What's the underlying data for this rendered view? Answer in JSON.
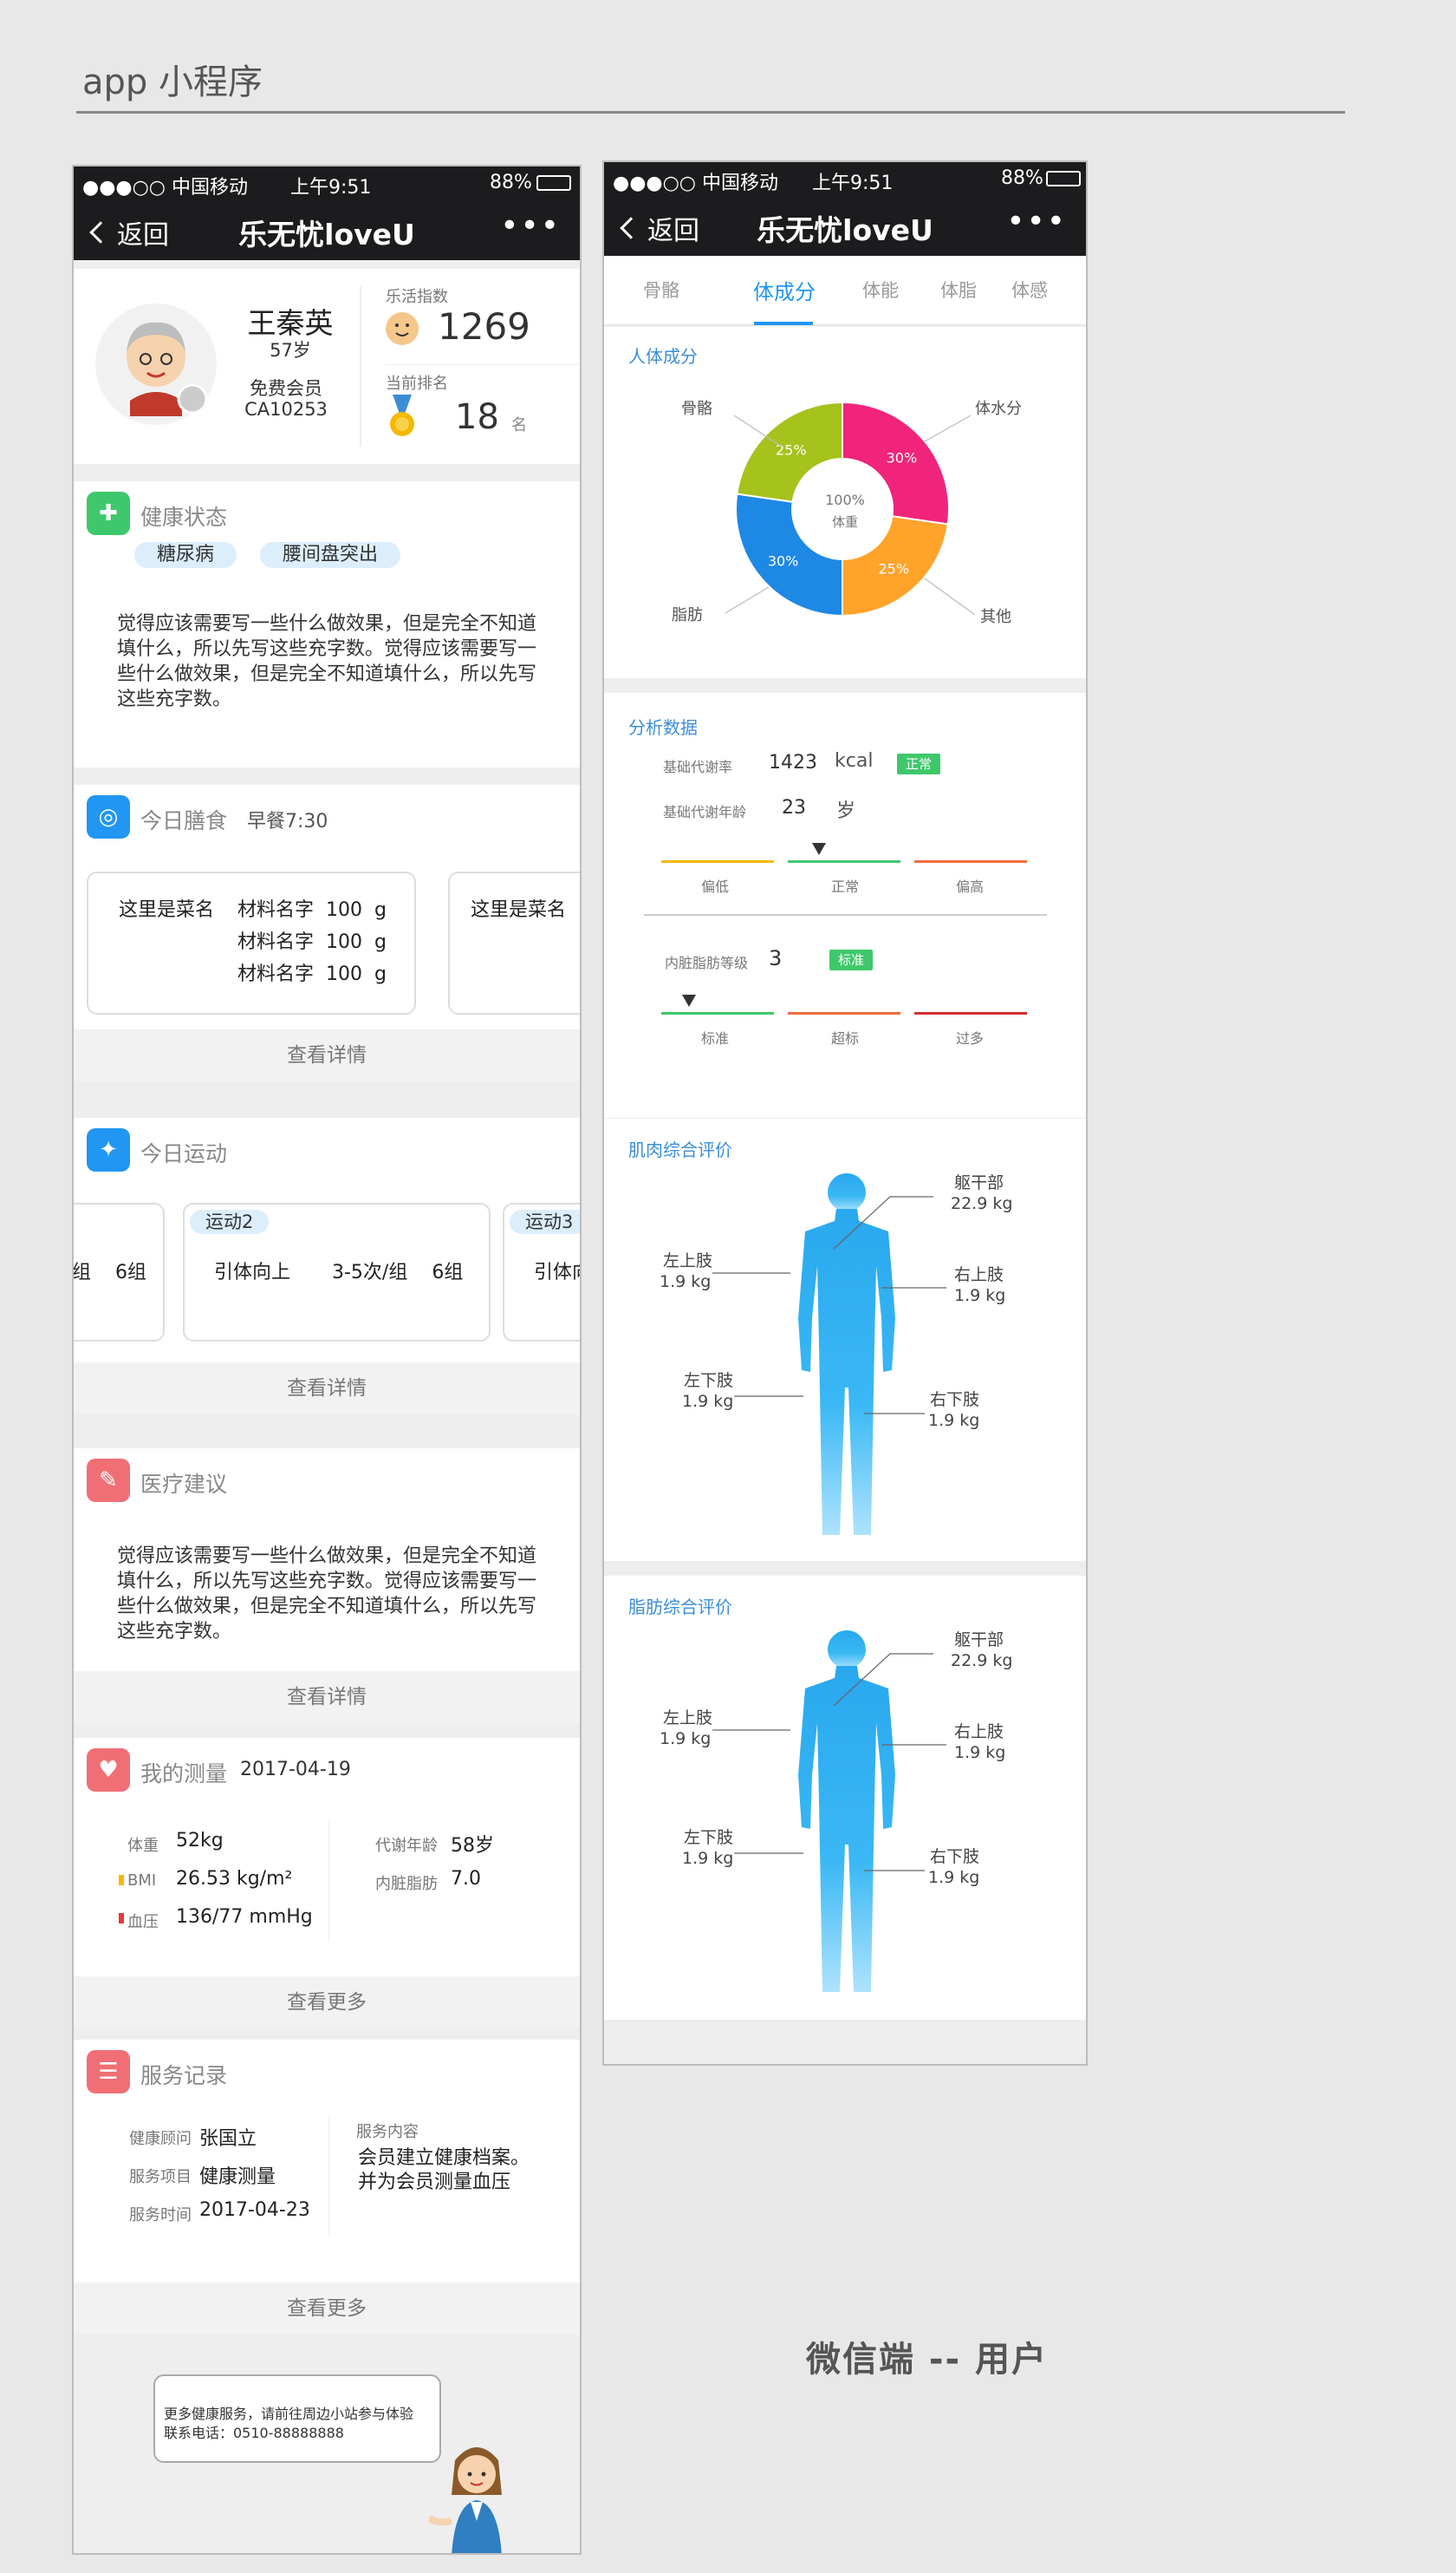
{
  "page": {
    "title": "app 小程序",
    "bottom_label": "微信端 -- 用户"
  },
  "status": {
    "carrier": "●●●○○ 中国移动",
    "time": "上午9:51",
    "battery": "88%"
  },
  "nav": {
    "back": "返回",
    "title": "乐无忧loveU",
    "more": "•••"
  },
  "profile": {
    "name": "王秦英",
    "age": "57岁",
    "member": "免费会员",
    "member_id": "CA10253",
    "index_label": "乐活指数",
    "index_value": "1269",
    "rank_label": "当前排名",
    "rank_value": "18",
    "rank_unit": "名"
  },
  "health": {
    "title": "健康状态",
    "tags": [
      "糖尿病",
      "腰间盘突出"
    ],
    "text": "觉得应该需要写一些什么做效果，但是完全不知道填什么，所以先写这些充字数。觉得应该需要写一些什么做效果，但是完全不知道填什么，所以先写这些充字数。"
  },
  "meal": {
    "title": "今日膳食",
    "subtitle": "早餐7:30",
    "dish": "这里是菜名",
    "dish2": "这里是菜名",
    "ingredients": [
      "材料名字  100  g",
      "材料名字  100  g",
      "材料名字  100  g"
    ],
    "more": "查看详情"
  },
  "sport": {
    "title": "今日运动",
    "left_partial": "组    6组",
    "card_tag": "运动2",
    "card_name": "引体向上",
    "card_spec": "3-5次/组    6组",
    "right_tag": "运动3",
    "right_name": "引体向",
    "more": "查看详情"
  },
  "medical": {
    "title": "医疗建议",
    "text": "觉得应该需要写一些什么做效果，但是完全不知道填什么，所以先写这些充字数。觉得应该需要写一些什么做效果，但是完全不知道填什么，所以先写这些充字数。",
    "more": "查看详情"
  },
  "measure": {
    "title": "我的测量",
    "date": "2017-04-19",
    "weight_label": "体重",
    "weight": "52kg",
    "bmi_label": "BMI",
    "bmi": "26.53 kg/m²",
    "bp_label": "血压",
    "bp": "136/77 mmHg",
    "metab_age_label": "代谢年龄",
    "metab_age": "58岁",
    "visceral_label": "内脏脂肪",
    "visceral": "7.0",
    "more": "查看更多"
  },
  "service": {
    "title": "服务记录",
    "advisor_label": "健康顾问",
    "advisor": "张国立",
    "item_label": "服务项目",
    "item": "健康测量",
    "time_label": "服务时间",
    "time": "2017-04-23",
    "content_label": "服务内容",
    "content1": "会员建立健康档案。",
    "content2": "并为会员测量血压",
    "more": "查看更多"
  },
  "footer": {
    "line1": "更多健康服务，请前往周边小站参与体验",
    "line2": "联系电话：0510-88888888"
  },
  "tabs": [
    "骨骼",
    "体成分",
    "体能",
    "体脂",
    "体感"
  ],
  "composition": {
    "title": "人体成分",
    "center_pct": "100%",
    "center_label": "体重",
    "labels": {
      "bone": "骨骼",
      "water": "体水分",
      "fat": "脂肪",
      "other": "其他"
    },
    "chart_data": {
      "type": "pie",
      "categories": [
        "体水分",
        "其他",
        "脂肪",
        "骨骼"
      ],
      "values": [
        30,
        25,
        30,
        25
      ],
      "value_labels": [
        "30%",
        "25%",
        "30%",
        "25%"
      ],
      "colors": [
        "#f0247a",
        "#ffa32b",
        "#1e88e5",
        "#a6c21c"
      ]
    }
  },
  "analysis": {
    "title": "分析数据",
    "bmr_label": "基础代谢率",
    "bmr": "1423",
    "bmr_unit": "kcal",
    "bmr_badge": "正常",
    "bmr_age_label": "基础代谢年龄",
    "bmr_age": "23",
    "bmr_age_unit": "岁",
    "gauge1": [
      "偏低",
      "正常",
      "偏高"
    ],
    "visceral_label": "内脏脂肪等级",
    "visceral": "3",
    "visceral_badge": "标准",
    "gauge2": [
      "标准",
      "超标",
      "过多"
    ]
  },
  "muscle": {
    "title": "肌肉综合评价",
    "trunk_label": "躯干部",
    "trunk": "22.9 kg",
    "lu_label": "左上肢",
    "lu": "1.9 kg",
    "ru_label": "右上肢",
    "ru": "1.9 kg",
    "ll_label": "左下肢",
    "ll": "1.9 kg",
    "rl_label": "右下肢",
    "rl": "1.9 kg"
  },
  "fat": {
    "title": "脂肪综合评价",
    "trunk_label": "躯干部",
    "trunk": "22.9 kg",
    "lu_label": "左上肢",
    "lu": "1.9 kg",
    "ru_label": "右上肢",
    "ru": "1.9 kg",
    "ll_label": "左下肢",
    "ll": "1.9 kg",
    "rl_label": "右下肢",
    "rl": "1.9 kg"
  }
}
